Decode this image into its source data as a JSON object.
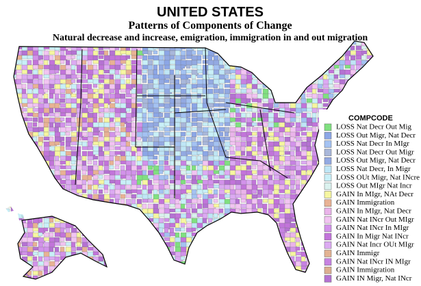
{
  "header": {
    "title": "UNITED STATES",
    "subtitle": "Patterns of Components of Change",
    "description": "Natural decrease and increase, emigration, immigration in and out migration"
  },
  "legend": {
    "title": "COMPCODE",
    "items": [
      {
        "label": "LOSS Nat Decr Out Mig",
        "color": "#80e080"
      },
      {
        "label": "LOSS Out Migr, Nat Decr",
        "color": "#8ca6e6"
      },
      {
        "label": "LOSS Nat Decr In MIgr",
        "color": "#a4c2f2"
      },
      {
        "label": "LOSS Nat Decr Out Migr",
        "color": "#a9b7da"
      },
      {
        "label": "LOSS Out Migr, Nat Decr",
        "color": "#93a9e2"
      },
      {
        "label": "LOSS Nat Decr, In Migr",
        "color": "#bfe6f6"
      },
      {
        "label": "LOSS OUt Migr, Nat INcre",
        "color": "#c9f0f8"
      },
      {
        "label": "LOSS Out MIgr Nat Incr",
        "color": "#dbf2ef"
      },
      {
        "label": "GAIN In MIgr, NAt Decr",
        "color": "#f6f6a0"
      },
      {
        "label": "GAIN Immigration",
        "color": "#e8b294"
      },
      {
        "label": "GAIN In MIgr, Nat Decr",
        "color": "#eab4ea"
      },
      {
        "label": "GAIN Nat INcr Out MIgr",
        "color": "#f2c4f2"
      },
      {
        "label": "GAIN Nat INcr In MIgr",
        "color": "#d292ea"
      },
      {
        "label": "GAIN In Migr Nat INcr",
        "color": "#c274da"
      },
      {
        "label": "GAIN Nat Incr OUt MIgr",
        "color": "#dcaaf2"
      },
      {
        "label": "GAIN Immigr",
        "color": "#e2b292"
      },
      {
        "label": "GAIN Nat INcr IN MIgr",
        "color": "#c682e2"
      },
      {
        "label": "GAIN Immigration",
        "color": "#dcae90"
      },
      {
        "label": "GAIN IN Migr, Nat INcr",
        "color": "#b472d2"
      }
    ]
  }
}
